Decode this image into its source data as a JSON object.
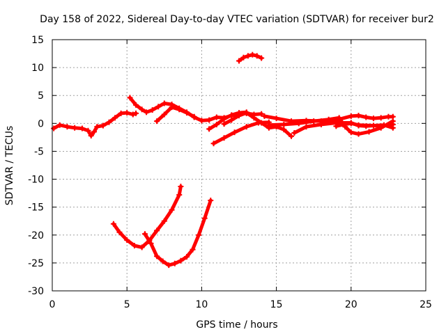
{
  "chart_data": {
    "type": "line",
    "title": "Day 158 of 2022, Sidereal Day-to-day VTEC variation (SDTVAR) for receiver bur2",
    "xlabel": "GPS time / hours",
    "ylabel": "SDTVAR / TECUs",
    "xlim": [
      0,
      25
    ],
    "ylim": [
      -30,
      15
    ],
    "xticks": [
      0,
      5,
      10,
      15,
      20,
      25
    ],
    "yticks": [
      -30,
      -25,
      -20,
      -15,
      -10,
      -5,
      0,
      5,
      10,
      15
    ],
    "grid": true,
    "line_color": "#ff0000",
    "series": [
      {
        "name": "trace-a",
        "points": [
          [
            0.1,
            -0.9
          ],
          [
            0.5,
            -0.3
          ],
          [
            1.0,
            -0.6
          ],
          [
            1.5,
            -0.8
          ],
          [
            2.0,
            -0.9
          ],
          [
            2.4,
            -1.3
          ],
          [
            2.6,
            -2.2
          ],
          [
            2.8,
            -1.5
          ],
          [
            3.0,
            -0.6
          ],
          [
            3.4,
            -0.4
          ],
          [
            3.8,
            0.2
          ],
          [
            4.2,
            1.0
          ],
          [
            4.6,
            1.8
          ],
          [
            5.0,
            1.9
          ],
          [
            5.4,
            1.6
          ],
          [
            5.6,
            1.8
          ]
        ]
      },
      {
        "name": "trace-b",
        "points": [
          [
            5.2,
            4.6
          ],
          [
            5.6,
            3.3
          ],
          [
            6.0,
            2.5
          ],
          [
            6.3,
            2.0
          ],
          [
            6.7,
            2.4
          ],
          [
            7.1,
            3.0
          ],
          [
            7.5,
            3.6
          ],
          [
            8.0,
            3.4
          ],
          [
            8.5,
            2.7
          ],
          [
            9.0,
            2.0
          ],
          [
            9.5,
            1.1
          ],
          [
            10.0,
            0.5
          ],
          [
            10.5,
            0.6
          ],
          [
            11.0,
            1.1
          ],
          [
            11.5,
            1.0
          ],
          [
            12.0,
            1.4
          ],
          [
            12.5,
            1.7
          ],
          [
            13.0,
            1.8
          ],
          [
            13.5,
            1.6
          ],
          [
            14.0,
            1.7
          ]
        ]
      },
      {
        "name": "trace-c",
        "points": [
          [
            7.0,
            0.4
          ],
          [
            7.5,
            1.6
          ],
          [
            8.0,
            2.9
          ],
          [
            8.5,
            2.5
          ],
          [
            9.0,
            1.9
          ],
          [
            9.5,
            1.2
          ]
        ]
      },
      {
        "name": "trace-d",
        "points": [
          [
            10.5,
            -1.0
          ],
          [
            11.0,
            -0.2
          ],
          [
            11.5,
            0.8
          ],
          [
            12.0,
            1.5
          ],
          [
            12.5,
            1.9
          ],
          [
            13.0,
            2.0
          ]
        ]
      },
      {
        "name": "trace-e",
        "points": [
          [
            12.5,
            11.2
          ],
          [
            12.8,
            11.8
          ],
          [
            13.1,
            12.1
          ],
          [
            13.4,
            12.3
          ],
          [
            13.7,
            12.1
          ],
          [
            14.0,
            11.7
          ]
        ]
      },
      {
        "name": "trace-f",
        "points": [
          [
            10.8,
            -3.6
          ],
          [
            11.5,
            -2.6
          ],
          [
            12.2,
            -1.6
          ],
          [
            13.0,
            -0.6
          ],
          [
            13.8,
            0.1
          ],
          [
            14.5,
            0.2
          ]
        ]
      },
      {
        "name": "trace-g",
        "points": [
          [
            11.5,
            -0.1
          ],
          [
            12.0,
            0.6
          ],
          [
            12.5,
            1.4
          ],
          [
            13.0,
            1.9
          ],
          [
            13.5,
            1.0
          ],
          [
            14.0,
            0.1
          ],
          [
            14.5,
            -0.8
          ],
          [
            15.0,
            -0.6
          ],
          [
            15.5,
            -1.1
          ],
          [
            16.0,
            -2.3
          ]
        ]
      },
      {
        "name": "trace-h",
        "points": [
          [
            14.2,
            1.3
          ],
          [
            15.0,
            0.9
          ],
          [
            16.0,
            0.4
          ],
          [
            17.0,
            0.5
          ],
          [
            18.0,
            0.4
          ],
          [
            19.0,
            0.6
          ],
          [
            20.0,
            1.3
          ],
          [
            20.5,
            1.4
          ],
          [
            21.0,
            1.1
          ],
          [
            21.5,
            0.9
          ],
          [
            22.0,
            1.0
          ],
          [
            22.5,
            1.2
          ],
          [
            22.8,
            1.2
          ]
        ]
      },
      {
        "name": "trace-i",
        "points": [
          [
            14.5,
            -0.3
          ],
          [
            15.5,
            -0.2
          ],
          [
            16.5,
            0.0
          ],
          [
            17.5,
            0.4
          ],
          [
            18.5,
            0.7
          ],
          [
            19.2,
            1.0
          ],
          [
            19.6,
            -0.6
          ],
          [
            20.0,
            -1.6
          ],
          [
            20.5,
            -1.9
          ],
          [
            21.2,
            -1.5
          ],
          [
            22.0,
            -0.8
          ],
          [
            22.8,
            0.4
          ]
        ]
      },
      {
        "name": "trace-j",
        "points": [
          [
            16.2,
            -1.7
          ],
          [
            17.0,
            -0.6
          ],
          [
            18.0,
            -0.2
          ],
          [
            19.0,
            0.1
          ],
          [
            20.0,
            0.1
          ],
          [
            20.5,
            -0.4
          ],
          [
            21.0,
            -0.5
          ],
          [
            21.5,
            -0.4
          ],
          [
            22.0,
            -0.5
          ],
          [
            22.8,
            -0.2
          ]
        ]
      },
      {
        "name": "trace-k",
        "points": [
          [
            19.0,
            -0.5
          ],
          [
            19.5,
            -0.2
          ],
          [
            20.0,
            0.0
          ],
          [
            20.5,
            -0.3
          ],
          [
            21.5,
            -0.4
          ],
          [
            22.2,
            -0.3
          ],
          [
            22.8,
            -0.8
          ]
        ]
      },
      {
        "name": "trace-l",
        "points": [
          [
            4.1,
            -18.0
          ],
          [
            4.5,
            -19.5
          ],
          [
            5.0,
            -20.9
          ],
          [
            5.5,
            -21.9
          ],
          [
            6.0,
            -22.2
          ],
          [
            6.5,
            -21.0
          ],
          [
            7.0,
            -19.2
          ],
          [
            7.5,
            -17.5
          ],
          [
            8.0,
            -15.5
          ],
          [
            8.5,
            -12.8
          ],
          [
            8.6,
            -11.3
          ]
        ]
      },
      {
        "name": "trace-m",
        "points": [
          [
            6.2,
            -19.8
          ],
          [
            6.6,
            -21.5
          ],
          [
            7.0,
            -23.8
          ],
          [
            7.4,
            -24.7
          ],
          [
            7.8,
            -25.4
          ],
          [
            8.2,
            -25.1
          ],
          [
            8.6,
            -24.6
          ],
          [
            9.0,
            -23.9
          ],
          [
            9.4,
            -22.6
          ],
          [
            9.8,
            -20.0
          ],
          [
            10.2,
            -17.0
          ],
          [
            10.6,
            -13.8
          ]
        ]
      }
    ]
  }
}
